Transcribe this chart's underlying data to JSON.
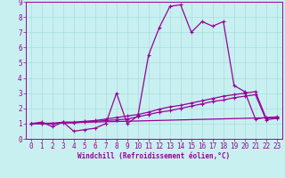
{
  "title": "Windchill (Refroidissement éolien,°C)",
  "bg_color": "#c8f0f0",
  "line_color": "#990099",
  "grid_color": "#aadddd",
  "xlim": [
    -0.5,
    23.5
  ],
  "ylim": [
    0,
    9
  ],
  "xticks": [
    0,
    1,
    2,
    3,
    4,
    5,
    6,
    7,
    8,
    9,
    10,
    11,
    12,
    13,
    14,
    15,
    16,
    17,
    18,
    19,
    20,
    21,
    22,
    23
  ],
  "yticks": [
    0,
    1,
    2,
    3,
    4,
    5,
    6,
    7,
    8,
    9
  ],
  "line1_x": [
    0,
    1,
    2,
    3,
    4,
    5,
    6,
    7,
    8,
    9,
    10,
    11,
    12,
    13,
    14,
    15,
    16,
    17,
    18,
    19,
    20,
    21,
    22,
    23
  ],
  "line1_y": [
    1.0,
    1.1,
    0.8,
    1.1,
    0.5,
    0.6,
    0.7,
    1.0,
    3.0,
    1.0,
    1.5,
    5.5,
    7.3,
    8.7,
    8.8,
    7.0,
    7.7,
    7.4,
    7.7,
    3.5,
    3.1,
    1.3,
    1.4,
    1.4
  ],
  "line2_x": [
    0,
    1,
    2,
    3,
    4,
    5,
    6,
    7,
    8,
    9,
    10,
    11,
    12,
    13,
    14,
    15,
    16,
    17,
    18,
    19,
    20,
    21,
    22,
    23
  ],
  "line2_y": [
    1.0,
    1.0,
    1.0,
    1.1,
    1.1,
    1.15,
    1.2,
    1.3,
    1.4,
    1.5,
    1.6,
    1.75,
    1.95,
    2.1,
    2.2,
    2.35,
    2.5,
    2.65,
    2.8,
    2.9,
    3.0,
    3.1,
    1.35,
    1.45
  ],
  "line3_x": [
    0,
    1,
    2,
    3,
    4,
    5,
    6,
    7,
    8,
    9,
    10,
    11,
    12,
    13,
    14,
    15,
    16,
    17,
    18,
    19,
    20,
    21,
    22,
    23
  ],
  "line3_y": [
    1.0,
    1.0,
    1.0,
    1.05,
    1.05,
    1.1,
    1.15,
    1.2,
    1.25,
    1.3,
    1.45,
    1.6,
    1.75,
    1.85,
    2.0,
    2.15,
    2.3,
    2.45,
    2.55,
    2.7,
    2.8,
    2.9,
    1.25,
    1.35
  ],
  "line4_x": [
    0,
    23
  ],
  "line4_y": [
    1.0,
    1.4
  ],
  "xlabel_size": 5.5,
  "tick_size": 5.5,
  "lw": 0.9,
  "marker_size": 3
}
